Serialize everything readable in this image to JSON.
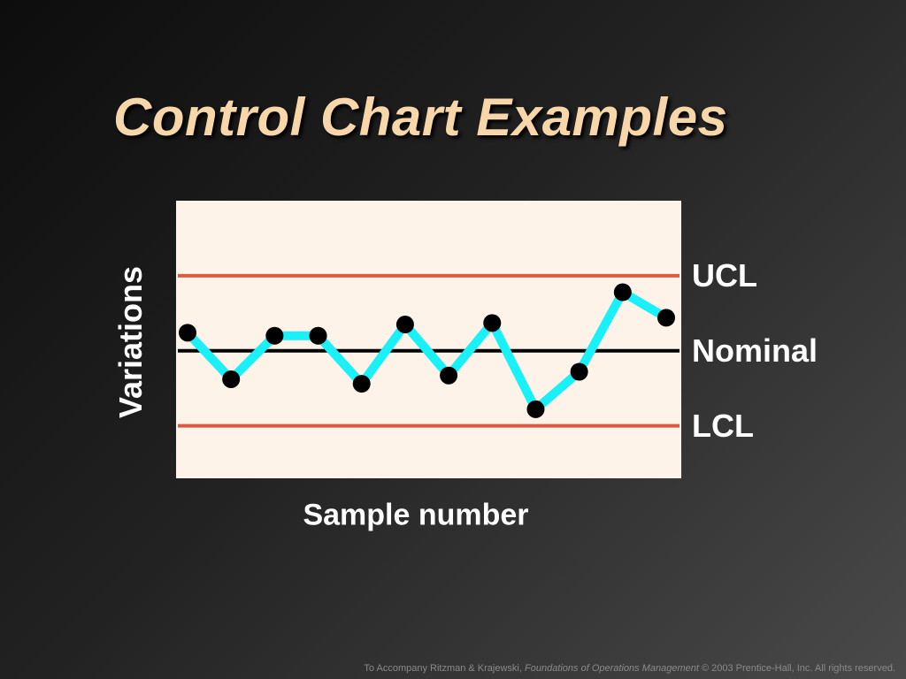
{
  "slide": {
    "title": "Control Chart Examples",
    "footer_prefix": "To Accompany Ritzman & Krajewski, ",
    "footer_book": "Foundations of Operations Management",
    "footer_suffix": " © 2003 Prentice-Hall, Inc. All rights reserved."
  },
  "colors": {
    "title": "#f7d7a9",
    "plot_background": "#fdf3e8",
    "limit_line": "#e2583e",
    "nominal_line": "#000000",
    "series_line": "#19f0f7",
    "point": "#000000"
  },
  "chart_data": {
    "type": "line",
    "xlabel": "Sample number",
    "ylabel": "Variations",
    "x": [
      1,
      2,
      3,
      4,
      5,
      6,
      7,
      8,
      9,
      10,
      11,
      12
    ],
    "values": [
      0.24,
      -0.38,
      0.2,
      0.2,
      -0.44,
      0.35,
      -0.33,
      0.37,
      -0.78,
      -0.28,
      0.78,
      0.44
    ],
    "ylim": [
      -1.7,
      2.0
    ],
    "grid": false,
    "reference_lines": [
      {
        "label": "UCL",
        "value": 1.0
      },
      {
        "label": "Nominal",
        "value": 0.0
      },
      {
        "label": "LCL",
        "value": -1.0
      }
    ]
  }
}
